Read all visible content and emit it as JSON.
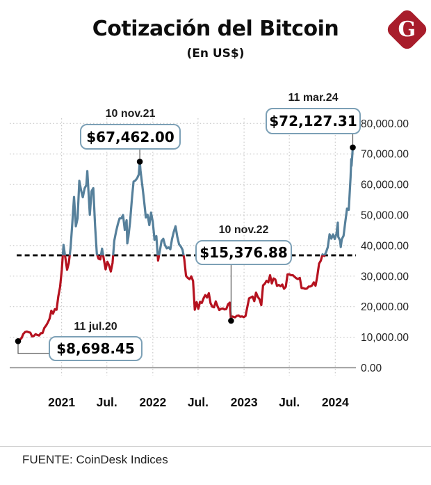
{
  "header": {
    "title": "Cotización del Bitcoin",
    "subtitle": "(En US$)",
    "logo_letter": "G"
  },
  "footer": {
    "source": "FUENTE: CoinDesk Indices"
  },
  "colors": {
    "line_above": "#56809B",
    "line_below": "#B5121F",
    "callout_border": "#7CA0B6",
    "logo_red": "#A81D2B",
    "grid": "#C9C9C9",
    "axis": "#8A8A8A",
    "reference_line": "#000000",
    "marker": "#000000",
    "connector": "#555555"
  },
  "chart_data": {
    "type": "line",
    "title": "Cotización del Bitcoin",
    "subtitle": "(En US$)",
    "unit": "US$",
    "source": "CoinDesk Indices",
    "x_range": [
      "2020-07-11",
      "2024-03-11"
    ],
    "ylim": [
      0,
      80000
    ],
    "grid": "dotted",
    "legend": "none",
    "y_axis_side": "right",
    "y_ticks": [
      {
        "value": 0,
        "label": "0.00"
      },
      {
        "value": 10000,
        "label": "10,000.00"
      },
      {
        "value": 20000,
        "label": "20,000.00"
      },
      {
        "value": 30000,
        "label": "30,000.00"
      },
      {
        "value": 40000,
        "label": "40,000.00"
      },
      {
        "value": 50000,
        "label": "50,000.00"
      },
      {
        "value": 60000,
        "label": "60,000.00"
      },
      {
        "value": 70000,
        "label": "70,000.00"
      },
      {
        "value": 80000,
        "label": "80,000.00"
      }
    ],
    "x_ticks": [
      {
        "date": "2021-01-01",
        "label": "2021"
      },
      {
        "date": "2021-07-01",
        "label": "Jul."
      },
      {
        "date": "2022-01-01",
        "label": "2022"
      },
      {
        "date": "2022-07-01",
        "label": "Jul."
      },
      {
        "date": "2023-01-01",
        "label": "2023"
      },
      {
        "date": "2023-07-01",
        "label": "Jul."
      },
      {
        "date": "2024-01-01",
        "label": "2024"
      }
    ],
    "reference_line": 36800,
    "color_rule": "line is blue above the dashed reference line, red below it",
    "annotations": [
      {
        "date_label": "11 jul.20",
        "value_label": "$8,698.45",
        "date": "2020-07-11",
        "value": 8698.45
      },
      {
        "date_label": "10 nov.21",
        "value_label": "$67,462.00",
        "date": "2021-11-10",
        "value": 67462.0
      },
      {
        "date_label": "10 nov.22",
        "value_label": "$15,376.88",
        "date": "2022-11-10",
        "value": 15376.88
      },
      {
        "date_label": "11 mar.24",
        "value_label": "$72,127.31",
        "date": "2024-03-11",
        "value": 72127.31
      }
    ],
    "series": [
      {
        "name": "Bitcoin (US$)",
        "points": [
          [
            "2020-07-11",
            8698.45
          ],
          [
            "2020-07-18",
            9170
          ],
          [
            "2020-07-25",
            9700
          ],
          [
            "2020-08-01",
            11100
          ],
          [
            "2020-08-08",
            11680
          ],
          [
            "2020-08-15",
            11850
          ],
          [
            "2020-08-22",
            11650
          ],
          [
            "2020-08-29",
            11500
          ],
          [
            "2020-09-05",
            10250
          ],
          [
            "2020-09-12",
            10400
          ],
          [
            "2020-09-19",
            11000
          ],
          [
            "2020-09-26",
            10720
          ],
          [
            "2020-10-03",
            10550
          ],
          [
            "2020-10-10",
            11300
          ],
          [
            "2020-10-17",
            11370
          ],
          [
            "2020-10-24",
            13050
          ],
          [
            "2020-10-31",
            13800
          ],
          [
            "2020-11-07",
            14800
          ],
          [
            "2020-11-14",
            16050
          ],
          [
            "2020-11-21",
            18650
          ],
          [
            "2020-11-28",
            17700
          ],
          [
            "2020-12-05",
            19150
          ],
          [
            "2020-12-12",
            19000
          ],
          [
            "2020-12-19",
            23400
          ],
          [
            "2020-12-26",
            26400
          ],
          [
            "2021-01-02",
            32100
          ],
          [
            "2021-01-09",
            40200
          ],
          [
            "2021-01-16",
            36000
          ],
          [
            "2021-01-23",
            32100
          ],
          [
            "2021-01-30",
            34300
          ],
          [
            "2021-02-06",
            39250
          ],
          [
            "2021-02-13",
            47200
          ],
          [
            "2021-02-20",
            55900
          ],
          [
            "2021-02-27",
            46300
          ],
          [
            "2021-03-06",
            48900
          ],
          [
            "2021-03-13",
            61200
          ],
          [
            "2021-03-20",
            58100
          ],
          [
            "2021-03-27",
            55800
          ],
          [
            "2021-04-03",
            58700
          ],
          [
            "2021-04-10",
            59800
          ],
          [
            "2021-04-14",
            64400
          ],
          [
            "2021-04-17",
            60000
          ],
          [
            "2021-04-24",
            50100
          ],
          [
            "2021-05-01",
            57800
          ],
          [
            "2021-05-08",
            58800
          ],
          [
            "2021-05-15",
            46400
          ],
          [
            "2021-05-22",
            37300
          ],
          [
            "2021-05-29",
            35700
          ],
          [
            "2021-06-05",
            35500
          ],
          [
            "2021-06-12",
            39000
          ],
          [
            "2021-06-19",
            35600
          ],
          [
            "2021-06-26",
            32200
          ],
          [
            "2021-07-03",
            34700
          ],
          [
            "2021-07-10",
            33500
          ],
          [
            "2021-07-17",
            31500
          ],
          [
            "2021-07-24",
            34300
          ],
          [
            "2021-07-31",
            41600
          ],
          [
            "2021-08-07",
            44600
          ],
          [
            "2021-08-14",
            47000
          ],
          [
            "2021-08-21",
            48900
          ],
          [
            "2021-08-28",
            48900
          ],
          [
            "2021-09-04",
            50000
          ],
          [
            "2021-09-11",
            45100
          ],
          [
            "2021-09-18",
            48300
          ],
          [
            "2021-09-21",
            40700
          ],
          [
            "2021-09-25",
            42700
          ],
          [
            "2021-10-02",
            47700
          ],
          [
            "2021-10-09",
            54900
          ],
          [
            "2021-10-16",
            60900
          ],
          [
            "2021-10-23",
            61300
          ],
          [
            "2021-10-30",
            62000
          ],
          [
            "2021-11-06",
            63300
          ],
          [
            "2021-11-10",
            67462
          ],
          [
            "2021-11-13",
            64400
          ],
          [
            "2021-11-20",
            59700
          ],
          [
            "2021-11-27",
            54800
          ],
          [
            "2021-12-04",
            49200
          ],
          [
            "2021-12-11",
            50100
          ],
          [
            "2021-12-18",
            46700
          ],
          [
            "2021-12-25",
            50800
          ],
          [
            "2022-01-01",
            47700
          ],
          [
            "2022-01-08",
            41900
          ],
          [
            "2022-01-15",
            43100
          ],
          [
            "2022-01-22",
            35100
          ],
          [
            "2022-01-29",
            38200
          ],
          [
            "2022-02-05",
            41500
          ],
          [
            "2022-02-12",
            42200
          ],
          [
            "2022-02-19",
            40100
          ],
          [
            "2022-02-26",
            39100
          ],
          [
            "2022-03-05",
            39400
          ],
          [
            "2022-03-12",
            38800
          ],
          [
            "2022-03-19",
            42200
          ],
          [
            "2022-03-26",
            44500
          ],
          [
            "2022-04-02",
            46300
          ],
          [
            "2022-04-09",
            42800
          ],
          [
            "2022-04-16",
            40400
          ],
          [
            "2022-04-23",
            39700
          ],
          [
            "2022-04-30",
            38600
          ],
          [
            "2022-05-07",
            35500
          ],
          [
            "2022-05-14",
            30100
          ],
          [
            "2022-05-21",
            29400
          ],
          [
            "2022-05-28",
            29000
          ],
          [
            "2022-06-04",
            29900
          ],
          [
            "2022-06-11",
            28400
          ],
          [
            "2022-06-18",
            19000
          ],
          [
            "2022-06-25",
            21500
          ],
          [
            "2022-07-02",
            19300
          ],
          [
            "2022-07-09",
            21600
          ],
          [
            "2022-07-16",
            21200
          ],
          [
            "2022-07-23",
            22700
          ],
          [
            "2022-07-30",
            23800
          ],
          [
            "2022-08-06",
            23000
          ],
          [
            "2022-08-13",
            24400
          ],
          [
            "2022-08-20",
            21100
          ],
          [
            "2022-08-27",
            20000
          ],
          [
            "2022-09-03",
            19800
          ],
          [
            "2022-09-10",
            21700
          ],
          [
            "2022-09-17",
            20100
          ],
          [
            "2022-09-24",
            18900
          ],
          [
            "2022-10-01",
            19300
          ],
          [
            "2022-10-08",
            19400
          ],
          [
            "2022-10-15",
            19100
          ],
          [
            "2022-10-22",
            19200
          ],
          [
            "2022-10-29",
            20800
          ],
          [
            "2022-11-05",
            21300
          ],
          [
            "2022-11-10",
            15376.88
          ],
          [
            "2022-11-12",
            16800
          ],
          [
            "2022-11-19",
            16700
          ],
          [
            "2022-11-26",
            16500
          ],
          [
            "2022-12-03",
            17000
          ],
          [
            "2022-12-10",
            17100
          ],
          [
            "2022-12-17",
            16700
          ],
          [
            "2022-12-24",
            16800
          ],
          [
            "2022-12-31",
            16550
          ],
          [
            "2023-01-07",
            16950
          ],
          [
            "2023-01-14",
            19900
          ],
          [
            "2023-01-21",
            22700
          ],
          [
            "2023-01-28",
            23000
          ],
          [
            "2023-02-04",
            23300
          ],
          [
            "2023-02-11",
            21800
          ],
          [
            "2023-02-18",
            24600
          ],
          [
            "2023-02-25",
            23200
          ],
          [
            "2023-03-04",
            22400
          ],
          [
            "2023-03-11",
            20500
          ],
          [
            "2023-03-18",
            26950
          ],
          [
            "2023-03-25",
            27500
          ],
          [
            "2023-04-01",
            28450
          ],
          [
            "2023-04-08",
            27950
          ],
          [
            "2023-04-15",
            30300
          ],
          [
            "2023-04-22",
            27600
          ],
          [
            "2023-04-29",
            29250
          ],
          [
            "2023-05-06",
            28900
          ],
          [
            "2023-05-13",
            26800
          ],
          [
            "2023-05-20",
            27100
          ],
          [
            "2023-05-27",
            26700
          ],
          [
            "2023-06-03",
            27250
          ],
          [
            "2023-06-10",
            25850
          ],
          [
            "2023-06-17",
            26500
          ],
          [
            "2023-06-24",
            30550
          ],
          [
            "2023-07-01",
            30600
          ],
          [
            "2023-07-08",
            30300
          ],
          [
            "2023-07-15",
            30300
          ],
          [
            "2023-07-22",
            29800
          ],
          [
            "2023-07-29",
            29300
          ],
          [
            "2023-08-05",
            29050
          ],
          [
            "2023-08-12",
            29400
          ],
          [
            "2023-08-19",
            26100
          ],
          [
            "2023-08-26",
            26050
          ],
          [
            "2023-09-02",
            25850
          ],
          [
            "2023-09-09",
            25900
          ],
          [
            "2023-09-16",
            26550
          ],
          [
            "2023-09-23",
            26600
          ],
          [
            "2023-09-30",
            26950
          ],
          [
            "2023-10-07",
            27950
          ],
          [
            "2023-10-14",
            26850
          ],
          [
            "2023-10-21",
            29900
          ],
          [
            "2023-10-28",
            34100
          ],
          [
            "2023-11-04",
            35050
          ],
          [
            "2023-11-11",
            37100
          ],
          [
            "2023-11-18",
            36600
          ],
          [
            "2023-11-25",
            37800
          ],
          [
            "2023-12-02",
            39450
          ],
          [
            "2023-12-09",
            43700
          ],
          [
            "2023-12-16",
            42250
          ],
          [
            "2023-12-23",
            43650
          ],
          [
            "2023-12-30",
            42150
          ],
          [
            "2024-01-06",
            43950
          ],
          [
            "2024-01-11",
            47500
          ],
          [
            "2024-01-13",
            42850
          ],
          [
            "2024-01-20",
            41650
          ],
          [
            "2024-01-23",
            39550
          ],
          [
            "2024-01-27",
            42100
          ],
          [
            "2024-02-03",
            43200
          ],
          [
            "2024-02-10",
            47750
          ],
          [
            "2024-02-17",
            52100
          ],
          [
            "2024-02-24",
            51700
          ],
          [
            "2024-03-02",
            62400
          ],
          [
            "2024-03-05",
            68300
          ],
          [
            "2024-03-06",
            66100
          ],
          [
            "2024-03-08",
            68300
          ],
          [
            "2024-03-11",
            72127.31
          ]
        ]
      }
    ]
  }
}
